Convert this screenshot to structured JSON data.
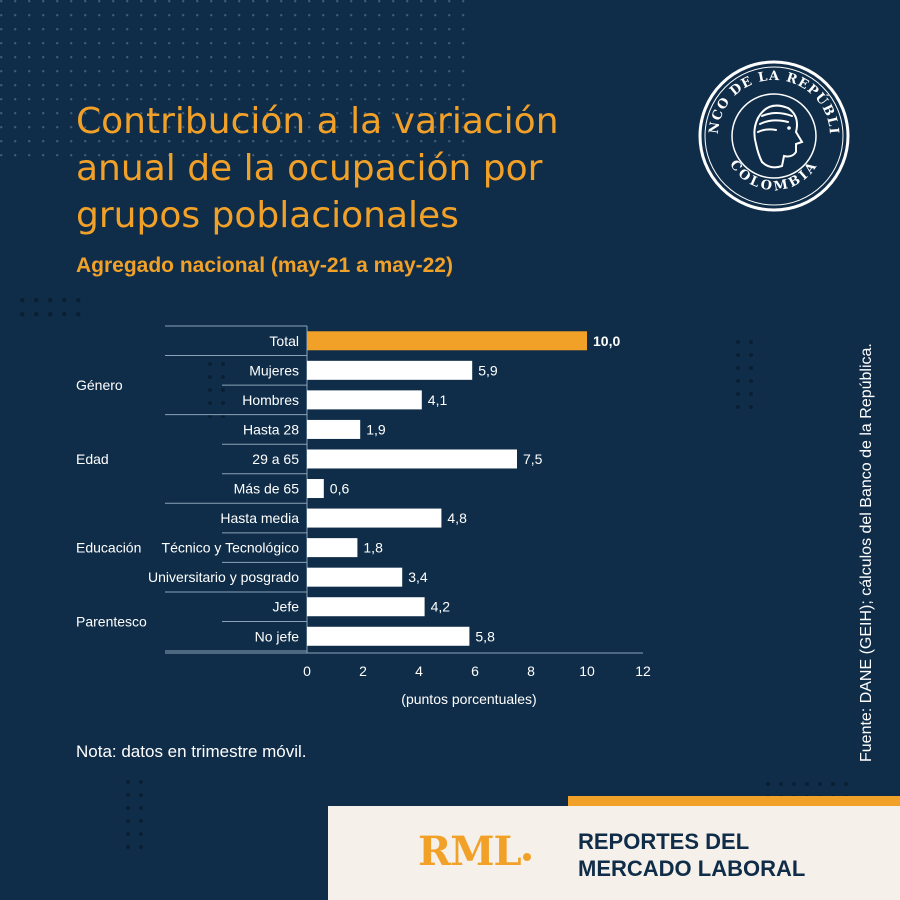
{
  "header": {
    "title": "Contribución a la variación anual de la ocupación por grupos poblacionales",
    "subtitle": "Agregado nacional (may-21 a may-22)"
  },
  "note": "Nota: datos en trimestre móvil.",
  "source": "Fuente: DANE (GEIH); cálculos del Banco de la República.",
  "logo": {
    "top_text": "BANCO DE LA REPÚBLICA",
    "bottom_text": "COLOMBIA",
    "icon": "seal-profile-icon"
  },
  "footer": {
    "brand": "RML",
    "line1": "REPORTES DEL",
    "line2": "MERCADO LABORAL"
  },
  "colors": {
    "background": "#0f2d48",
    "accent": "#f2a128",
    "bar": "#ffffff",
    "footer_bg": "#f6f0ea"
  },
  "chart_data": {
    "type": "bar",
    "orientation": "horizontal",
    "categories": [
      "Total",
      "Mujeres",
      "Hombres",
      "Hasta 28",
      "29 a 65",
      "Más de 65",
      "Hasta media",
      "Técnico y Tecnológico",
      "Universitario y posgrado",
      "Jefe",
      "No jefe"
    ],
    "values": [
      10.0,
      5.9,
      4.1,
      1.9,
      7.5,
      0.6,
      4.8,
      1.8,
      3.4,
      4.2,
      5.8
    ],
    "value_labels": [
      "10,0",
      "5,9",
      "4,1",
      "1,9",
      "7,5",
      "0,6",
      "4,8",
      "1,8",
      "3,4",
      "4,2",
      "5,8"
    ],
    "highlight_index": 0,
    "groups": [
      {
        "name": "",
        "start": 0,
        "end": 0
      },
      {
        "name": "Género",
        "start": 1,
        "end": 2
      },
      {
        "name": "Edad",
        "start": 3,
        "end": 5
      },
      {
        "name": "Educación",
        "start": 6,
        "end": 8
      },
      {
        "name": "Parentesco",
        "start": 9,
        "end": 10
      }
    ],
    "xlabel": "(puntos porcentuales)",
    "xlim": [
      0,
      12
    ],
    "xticks": [
      "0",
      "2",
      "4",
      "6",
      "8",
      "10",
      "12"
    ],
    "grid": false,
    "legend": "none"
  }
}
